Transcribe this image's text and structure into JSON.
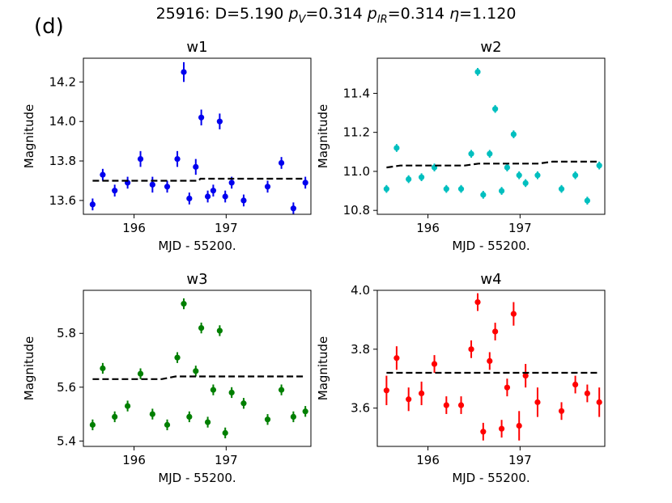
{
  "figure": {
    "panel_label": "(d)",
    "title": "25916: D=5.190 p_V=0.314 p_IR=0.314 η=1.120",
    "title_parts": {
      "lead": "25916: D=5.190 ",
      "pv_sym": "p",
      "pv_sub": "V",
      "pv_val": "=0.314 ",
      "pir_sym": "p",
      "pir_sub": "IR",
      "pir_val": "=0.314 ",
      "eta_sym": "η",
      "eta_val": "=1.120"
    },
    "colors": {
      "w1": "#0000ee",
      "w2": "#00bfbf",
      "w3": "#007f00",
      "w4": "#ff0000",
      "model": "#000000"
    }
  },
  "chart_data": [
    {
      "type": "scatter",
      "title": "w1",
      "xlabel": "MJD - 55200.",
      "ylabel": "Magnitude",
      "xlim": [
        195.45,
        197.92
      ],
      "ylim": [
        13.53,
        14.32
      ],
      "xticks": [
        196,
        197
      ],
      "xtick_labels": [
        "196",
        "197"
      ],
      "yticks": [
        13.6,
        13.8,
        14.0,
        14.2
      ],
      "ytick_labels": [
        "13.6",
        "13.8",
        "14.0",
        "14.2"
      ],
      "series": [
        {
          "name": "w1",
          "x": [
            195.55,
            195.66,
            195.79,
            195.93,
            196.07,
            196.2,
            196.36,
            196.47,
            196.54,
            196.6,
            196.67,
            196.73,
            196.8,
            196.86,
            196.93,
            196.99,
            197.06,
            197.19,
            197.45,
            197.6,
            197.73,
            197.86
          ],
          "y": [
            13.58,
            13.73,
            13.65,
            13.69,
            13.81,
            13.68,
            13.67,
            13.81,
            14.25,
            13.61,
            13.77,
            14.02,
            13.62,
            13.65,
            14.0,
            13.62,
            13.69,
            13.6,
            13.67,
            13.79,
            13.56,
            13.69
          ],
          "yerr": [
            0.03,
            0.03,
            0.03,
            0.03,
            0.04,
            0.04,
            0.03,
            0.04,
            0.05,
            0.03,
            0.04,
            0.04,
            0.03,
            0.03,
            0.04,
            0.03,
            0.03,
            0.03,
            0.03,
            0.03,
            0.03,
            0.03
          ]
        }
      ],
      "model": {
        "x": [
          195.55,
          196.7,
          196.72,
          197.86
        ],
        "y": [
          13.7,
          13.7,
          13.71,
          13.71
        ]
      }
    },
    {
      "type": "scatter",
      "title": "w2",
      "xlabel": "MJD - 55200.",
      "ylabel": "Magnitude",
      "xlim": [
        195.45,
        197.92
      ],
      "ylim": [
        10.78,
        11.58
      ],
      "xticks": [
        196,
        197
      ],
      "xtick_labels": [
        "196",
        "197"
      ],
      "yticks": [
        10.8,
        11.0,
        11.2,
        11.4
      ],
      "ytick_labels": [
        "10.8",
        "11.0",
        "11.2",
        "11.4"
      ],
      "series": [
        {
          "name": "w2",
          "x": [
            195.55,
            195.66,
            195.79,
            195.93,
            196.07,
            196.2,
            196.36,
            196.47,
            196.54,
            196.6,
            196.67,
            196.73,
            196.8,
            196.86,
            196.93,
            196.99,
            197.06,
            197.19,
            197.45,
            197.6,
            197.73,
            197.86
          ],
          "y": [
            10.91,
            11.12,
            10.96,
            10.97,
            11.02,
            10.91,
            10.91,
            11.09,
            11.51,
            10.88,
            11.09,
            11.32,
            10.9,
            11.02,
            11.19,
            10.98,
            10.94,
            10.98,
            10.91,
            10.98,
            10.85,
            11.03
          ],
          "yerr": [
            0.02,
            0.02,
            0.02,
            0.02,
            0.02,
            0.02,
            0.02,
            0.02,
            0.02,
            0.02,
            0.02,
            0.02,
            0.02,
            0.02,
            0.02,
            0.02,
            0.02,
            0.02,
            0.02,
            0.02,
            0.02,
            0.02
          ]
        }
      ],
      "model": {
        "x": [
          195.55,
          195.7,
          196.4,
          196.55,
          197.2,
          197.35,
          197.86
        ],
        "y": [
          11.02,
          11.03,
          11.03,
          11.04,
          11.04,
          11.05,
          11.05
        ]
      }
    },
    {
      "type": "scatter",
      "title": "w3",
      "xlabel": "MJD - 55200.",
      "ylabel": "Magnitude",
      "xlim": [
        195.45,
        197.92
      ],
      "ylim": [
        5.38,
        5.96
      ],
      "xticks": [
        196,
        197
      ],
      "xtick_labels": [
        "196",
        "197"
      ],
      "yticks": [
        5.4,
        5.6,
        5.8
      ],
      "ytick_labels": [
        "5.4",
        "5.6",
        "5.8"
      ],
      "series": [
        {
          "name": "w3",
          "x": [
            195.55,
            195.66,
            195.79,
            195.93,
            196.07,
            196.2,
            196.36,
            196.47,
            196.54,
            196.6,
            196.67,
            196.73,
            196.8,
            196.86,
            196.93,
            196.99,
            197.06,
            197.19,
            197.45,
            197.6,
            197.73,
            197.86
          ],
          "y": [
            5.46,
            5.67,
            5.49,
            5.53,
            5.65,
            5.5,
            5.46,
            5.71,
            5.91,
            5.49,
            5.66,
            5.82,
            5.47,
            5.59,
            5.81,
            5.43,
            5.58,
            5.54,
            5.48,
            5.59,
            5.49,
            5.51
          ],
          "yerr": [
            0.02,
            0.02,
            0.02,
            0.02,
            0.02,
            0.02,
            0.02,
            0.02,
            0.02,
            0.02,
            0.02,
            0.02,
            0.02,
            0.02,
            0.02,
            0.02,
            0.02,
            0.02,
            0.02,
            0.02,
            0.02,
            0.02
          ]
        }
      ],
      "model": {
        "x": [
          195.55,
          196.3,
          196.45,
          197.86
        ],
        "y": [
          5.63,
          5.63,
          5.64,
          5.64
        ]
      }
    },
    {
      "type": "scatter",
      "title": "w4",
      "xlabel": "MJD - 55200.",
      "ylabel": "Magnitude",
      "xlim": [
        195.45,
        197.92
      ],
      "ylim": [
        3.47,
        4.0
      ],
      "xticks": [
        196,
        197
      ],
      "xtick_labels": [
        "196",
        "197"
      ],
      "yticks": [
        3.6,
        3.8,
        4.0
      ],
      "ytick_labels": [
        "3.6",
        "3.8",
        "4.0"
      ],
      "series": [
        {
          "name": "w4",
          "x": [
            195.55,
            195.66,
            195.79,
            195.93,
            196.07,
            196.2,
            196.36,
            196.47,
            196.54,
            196.6,
            196.67,
            196.73,
            196.8,
            196.86,
            196.93,
            196.99,
            197.06,
            197.19,
            197.45,
            197.6,
            197.73,
            197.86
          ],
          "y": [
            3.66,
            3.77,
            3.63,
            3.65,
            3.75,
            3.61,
            3.61,
            3.8,
            3.96,
            3.52,
            3.76,
            3.86,
            3.53,
            3.67,
            3.92,
            3.54,
            3.71,
            3.62,
            3.59,
            3.68,
            3.65,
            3.62
          ],
          "yerr": [
            0.05,
            0.04,
            0.04,
            0.04,
            0.03,
            0.03,
            0.03,
            0.03,
            0.03,
            0.03,
            0.03,
            0.03,
            0.03,
            0.03,
            0.04,
            0.05,
            0.04,
            0.05,
            0.03,
            0.03,
            0.03,
            0.05
          ]
        }
      ],
      "model": {
        "x": [
          195.55,
          197.86
        ],
        "y": [
          3.72,
          3.72
        ]
      }
    }
  ]
}
